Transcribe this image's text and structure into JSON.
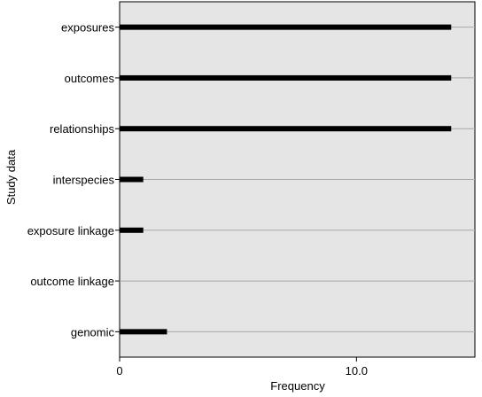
{
  "chart_data": {
    "type": "bar",
    "orientation": "horizontal",
    "title": "",
    "xlabel": "Frequency",
    "ylabel": "Study data",
    "categories": [
      "exposures",
      "outcomes",
      "relationships",
      "interspecies",
      "exposure linkage",
      "outcome linkage",
      "genomic"
    ],
    "values": [
      14,
      14,
      14,
      1,
      1,
      0,
      2
    ],
    "xlim": [
      0,
      15
    ],
    "xticks": [
      0,
      10
    ],
    "xtick_labels": [
      "0",
      "10.0"
    ],
    "grid": "horizontal",
    "legend": "none",
    "colors": {
      "plot_background": "#e5e5e5",
      "bar": "#000000",
      "gridline": "#a8a8a8",
      "axis": "#000000"
    }
  }
}
